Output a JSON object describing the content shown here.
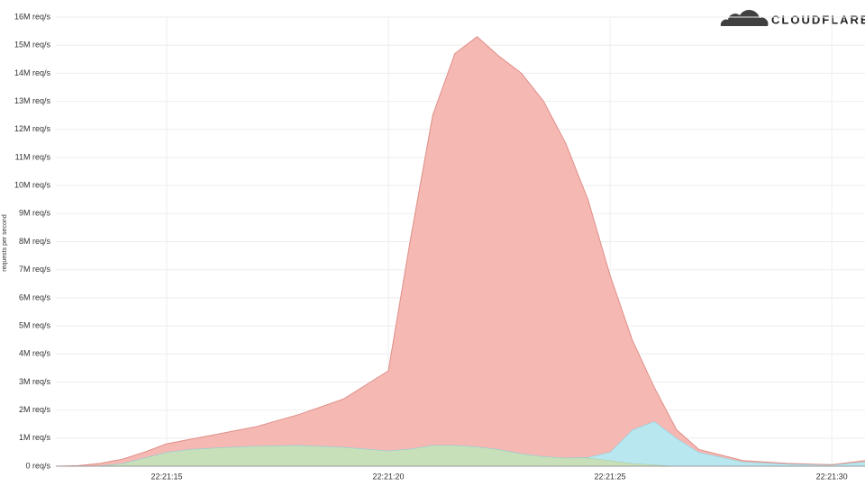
{
  "logo": "CLOUDFLARE",
  "chart_data": {
    "type": "stacked-area",
    "ylabel": "requests per second",
    "x": [
      12.5,
      13,
      13.5,
      14,
      14.5,
      15,
      15.5,
      16,
      17,
      18,
      19,
      20,
      20.5,
      21,
      21.5,
      22,
      22.5,
      23,
      23.5,
      24,
      24.5,
      25,
      25.5,
      26,
      26.5,
      27,
      28,
      29,
      30,
      30.75
    ],
    "series": [
      {
        "color": "#c7e0ba",
        "stroke": "#a9c99b",
        "values": [
          0,
          0,
          0.02,
          0.1,
          0.3,
          0.5,
          0.6,
          0.65,
          0.72,
          0.75,
          0.68,
          0.55,
          0.62,
          0.75,
          0.75,
          0.7,
          0.6,
          0.45,
          0.35,
          0.3,
          0.3,
          0.2,
          0.1,
          0.05,
          0,
          0,
          0,
          0,
          0,
          0
        ]
      },
      {
        "color": "#b8e7f0",
        "stroke": "#86d1e1",
        "values": [
          0,
          0,
          0,
          0,
          0,
          0,
          0,
          0,
          0,
          0,
          0,
          0,
          0,
          0,
          0,
          0,
          0,
          0,
          0,
          0,
          0.02,
          0.3,
          1.2,
          1.55,
          1.0,
          0.5,
          0.15,
          0.08,
          0.05,
          0.15
        ]
      },
      {
        "color": "#f5b8b3",
        "stroke": "#df8f89",
        "values": [
          0,
          0.02,
          0.08,
          0.15,
          0.2,
          0.3,
          0.35,
          0.45,
          0.68,
          1.1,
          1.72,
          2.85,
          7.48,
          11.75,
          13.95,
          14.6,
          14.0,
          13.55,
          12.65,
          11.2,
          9.18,
          6.3,
          3.2,
          1.2,
          0.3,
          0.1,
          0.05,
          0.02,
          0,
          0.05
        ]
      }
    ],
    "xlim": [
      12.5,
      30.75
    ],
    "xticks": [
      {
        "value": 15,
        "label": "22:21:15"
      },
      {
        "value": 20,
        "label": "22:21:20"
      },
      {
        "value": 25,
        "label": "22:21:25"
      },
      {
        "value": 30,
        "label": "22:21:30"
      }
    ],
    "ylim": [
      0,
      16
    ],
    "yticks": [
      {
        "value": 0,
        "label": "0 req/s"
      },
      {
        "value": 1,
        "label": "1M req/s"
      },
      {
        "value": 2,
        "label": "2M req/s"
      },
      {
        "value": 3,
        "label": "3M req/s"
      },
      {
        "value": 4,
        "label": "4M req/s"
      },
      {
        "value": 5,
        "label": "5M req/s"
      },
      {
        "value": 6,
        "label": "6M req/s"
      },
      {
        "value": 7,
        "label": "7M req/s"
      },
      {
        "value": 8,
        "label": "8M req/s"
      },
      {
        "value": 9,
        "label": "9M req/s"
      },
      {
        "value": 10,
        "label": "10M req/s"
      },
      {
        "value": 11,
        "label": "11M req/s"
      },
      {
        "value": 12,
        "label": "12M req/s"
      },
      {
        "value": 13,
        "label": "13M req/s"
      },
      {
        "value": 14,
        "label": "14M req/s"
      },
      {
        "value": 15,
        "label": "15M req/s"
      },
      {
        "value": 16,
        "label": "16M req/s"
      }
    ],
    "grid": true
  }
}
